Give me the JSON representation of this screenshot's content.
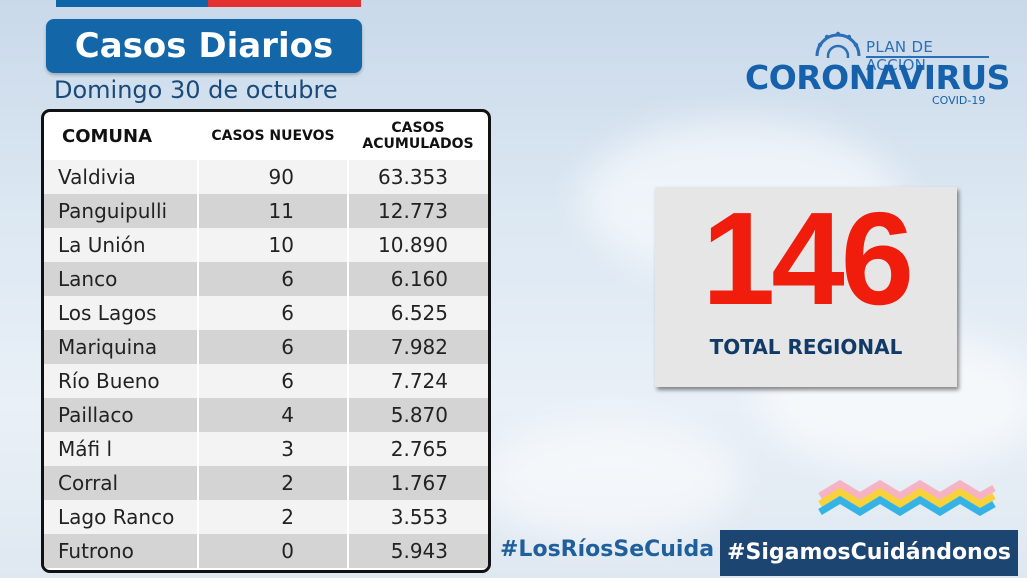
{
  "header": {
    "title": "Casos Diarios",
    "date": "Domingo 30 de octubre"
  },
  "table": {
    "headers": [
      "COMUNA",
      "CASOS NUEVOS",
      "CASOS ACUMULADOS"
    ],
    "rows": [
      {
        "comuna": "Valdivia",
        "nuevos": "90",
        "acumulados": "63.353"
      },
      {
        "comuna": "Panguipulli",
        "nuevos": "11",
        "acumulados": "12.773"
      },
      {
        "comuna": "La Unión",
        "nuevos": "10",
        "acumulados": "10.890"
      },
      {
        "comuna": "Lanco",
        "nuevos": "6",
        "acumulados": "6.160"
      },
      {
        "comuna": "Los Lagos",
        "nuevos": "6",
        "acumulados": "6.525"
      },
      {
        "comuna": "Mariquina",
        "nuevos": "6",
        "acumulados": "7.982"
      },
      {
        "comuna": "Río Bueno",
        "nuevos": "6",
        "acumulados": "7.724"
      },
      {
        "comuna": "Paillaco",
        "nuevos": "4",
        "acumulados": "5.870"
      },
      {
        "comuna": "Máfi l",
        "nuevos": "3",
        "acumulados": "2.765"
      },
      {
        "comuna": "Corral",
        "nuevos": "2",
        "acumulados": "1.767"
      },
      {
        "comuna": "Lago Ranco",
        "nuevos": "2",
        "acumulados": "3.553"
      },
      {
        "comuna": "Futrono",
        "nuevos": "0",
        "acumulados": "5.943"
      }
    ]
  },
  "logo": {
    "plan": "PLAN DE ACCIÓN",
    "name": "CORONAVIRUS",
    "sub": "COVID-19"
  },
  "total": {
    "value": "146",
    "label": "TOTAL REGIONAL"
  },
  "hashtags": {
    "left": "#LosRíosSeCuida",
    "right": "#SigamosCuidándonos"
  },
  "colors": {
    "brand_blue": "#1366a8",
    "brand_red": "#e4312f",
    "total_red": "#f01d0d",
    "dark_navy": "#1d4572"
  }
}
